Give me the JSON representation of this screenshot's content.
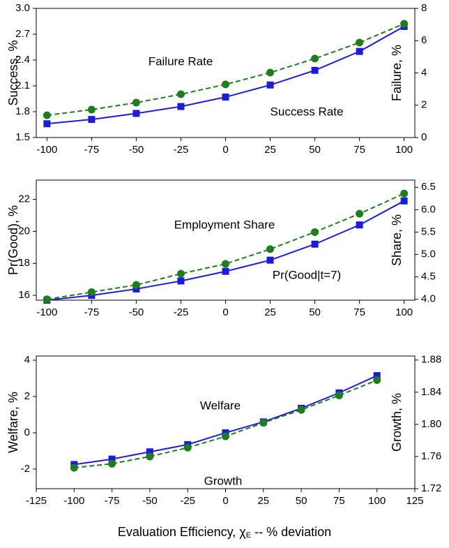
{
  "chart_data": [
    {
      "type": "line",
      "x": [
        -100,
        -75,
        -50,
        -25,
        0,
        25,
        50,
        75,
        100
      ],
      "xlim": [
        -106,
        106
      ],
      "xticks": [
        -100,
        -75,
        -50,
        -25,
        0,
        25,
        50,
        75,
        100
      ],
      "ylim": [
        1.5,
        3.0
      ],
      "yticks": [
        1.5,
        1.8,
        2.1,
        2.4,
        2.7,
        {
          "value": 3.0,
          "label": "3.0"
        }
      ],
      "y2lim": [
        0,
        8
      ],
      "y2ticks": [
        0,
        2,
        4,
        6,
        8
      ],
      "ylabel": "Success, %",
      "y2label": "Failure, %",
      "series": [
        {
          "name": "Success Rate",
          "color": "#1c1cd8",
          "marker": "square",
          "dash": false,
          "values": [
            1.66,
            1.71,
            1.78,
            1.86,
            1.97,
            2.11,
            2.28,
            2.5,
            2.79
          ]
        },
        {
          "name": "Failure Rate",
          "color": "#1f7d1f",
          "marker": "circle",
          "dash": true,
          "axis": "y2",
          "values": [
            1.38,
            1.73,
            2.16,
            2.68,
            3.29,
            4.02,
            4.89,
            5.88,
            7.05
          ]
        }
      ]
    },
    {
      "type": "line",
      "x": [
        -100,
        -75,
        -50,
        -25,
        0,
        25,
        50,
        75,
        100
      ],
      "xlim": [
        -106,
        106
      ],
      "xticks": [
        -100,
        -75,
        -50,
        -25,
        0,
        25,
        50,
        75,
        100
      ],
      "ylim": [
        15.7,
        23.2
      ],
      "yticks": [
        16,
        18,
        20,
        22
      ],
      "y2lim": [
        3.98,
        6.66
      ],
      "y2ticks": [
        {
          "value": 4.0,
          "label": "4.0"
        },
        4.5,
        {
          "value": 5.0,
          "label": "5.0"
        },
        5.5,
        {
          "value": 6.0,
          "label": "6.0"
        },
        6.5
      ],
      "ylabel": "Pr(Good), %",
      "y2label": "Share, %",
      "series": [
        {
          "name": "Pr(Good|t=7)",
          "color": "#1c1cd8",
          "marker": "square",
          "dash": false,
          "values": [
            15.7,
            16.0,
            16.4,
            16.9,
            17.5,
            18.2,
            19.2,
            20.4,
            21.9
          ]
        },
        {
          "name": "Employment Share",
          "color": "#1f7d1f",
          "marker": "circle",
          "dash": true,
          "axis": "y2",
          "values": [
            4.0,
            4.16,
            4.32,
            4.57,
            4.79,
            5.12,
            5.5,
            5.91,
            6.36
          ]
        }
      ]
    },
    {
      "type": "line",
      "x": [
        -100,
        -75,
        -50,
        -25,
        0,
        25,
        50,
        75,
        100
      ],
      "xlim": [
        -125,
        125
      ],
      "xticks": [
        -125,
        -100,
        -75,
        -50,
        -25,
        0,
        25,
        50,
        75,
        100,
        125
      ],
      "ylim": [
        -3.08,
        4.23
      ],
      "yticks": [
        -2,
        0,
        2,
        4
      ],
      "y2lim": [
        1.72,
        1.885
      ],
      "y2ticks": [
        1.72,
        1.76,
        {
          "value": 1.8,
          "label": "1.80"
        },
        1.84,
        1.88
      ],
      "ylabel": "Welfare, %",
      "y2label": "Growth, %",
      "xlabel": [
        "Evaluation Efficiency, χ",
        "E",
        " -- % deviation"
      ],
      "series": [
        {
          "name": "Welfare",
          "color": "#1c1cd8",
          "marker": "square",
          "dash": false,
          "values": [
            -1.75,
            -1.45,
            -1.05,
            -0.65,
            0.0,
            0.6,
            1.35,
            2.2,
            3.15
          ]
        },
        {
          "name": "Growth",
          "color": "#1f7d1f",
          "marker": "circle",
          "dash": true,
          "axis": "y2",
          "values": [
            1.746,
            1.751,
            1.76,
            1.771,
            1.785,
            1.802,
            1.818,
            1.836,
            1.855
          ]
        }
      ]
    }
  ]
}
